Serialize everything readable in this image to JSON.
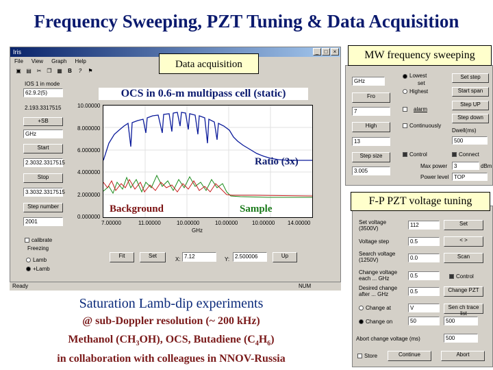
{
  "title": "Frequency Sweeping, PZT Tuning & Data Acquisition",
  "main_window": {
    "title": "Iris",
    "menu": [
      "File",
      "View",
      "Graph",
      "Help"
    ],
    "toolbar_icons": [
      "save-icon",
      "print-icon",
      "cut-icon",
      "copy-icon",
      "paste-icon",
      "bold-icon",
      "italic-icon",
      "help-icon"
    ],
    "left_panel": {
      "mode_label": "IOS 1 in mode",
      "mode_value": "62.9.2(5)",
      "freq_readout": "2.193.3317515",
      "sb_button": "+SB",
      "unit": "GHz",
      "start_button": "Start",
      "start_value": "2.3032.3317515",
      "stop_button": "Stop",
      "stop_value": "3.3032.3317515",
      "step_button": "Step number",
      "step_value": "2001",
      "calibrate": "calibrate",
      "freezing": "Freezing",
      "opt1": "Lamb",
      "opt2": "+Lamb"
    },
    "plot": {
      "yticks": [
        "10.00000",
        "8.000000",
        "6.000000",
        "4.000000",
        "2.000000",
        "0.000000"
      ],
      "xticks": [
        "7.00000",
        "11.00000",
        "10.00000",
        "10.00000",
        "10.00000",
        "14.00000"
      ],
      "xunit": "GHz"
    },
    "bottom_bar": {
      "btn1": "Fit",
      "btn2": "Set",
      "x_label": "X:",
      "x_value": "7.12",
      "y_label": "Y:",
      "y_value": "2.500006",
      "btn3": "Up"
    },
    "status": "Ready",
    "status_right": "NUM"
  },
  "callouts": {
    "data_acquisition": "Data acquisition",
    "ocs_cell": "OCS in 0.6-m multipass cell (static)",
    "ratio": "Ratio (3x)",
    "background": "Background",
    "sample": "Sample",
    "mw_sweep": "MW frequency sweeping",
    "fp_pzt": "F-P PZT voltage tuning"
  },
  "mw_panel": {
    "unit": "GHz",
    "from_button": "Fro",
    "from_value": "7",
    "high_button": "High",
    "high_value": "13",
    "step_button": "Step size",
    "step_value": "3.005",
    "lowest": "Lowest",
    "highest": "Highest",
    "opt_set": "set",
    "continuously": "Continuously",
    "alarm": "alarm",
    "control": "Control",
    "connect": "Connect",
    "max_power": "Max power",
    "power_level": "Power level",
    "p_value": "3",
    "p_unit": "dBm",
    "level_value": "TOP",
    "set_btn": "Set step",
    "start_btn": "Start span",
    "stepup_btn": "Step UP",
    "stepdn_btn": "Step down",
    "dwell_label": "Dwell(ms)",
    "dwell_value": "500"
  },
  "fp_panel": {
    "rows": [
      {
        "label": "Set voltage (3500V)",
        "value": "112",
        "button": "Set"
      },
      {
        "label": "Voltage step",
        "value": "0.5",
        "button": "<  >"
      },
      {
        "label": "Search voltage (1250V)",
        "value": "0.0",
        "button": "Scan"
      },
      {
        "label": "Change voltage each ... GHz",
        "value": "0.5",
        "button": "Control"
      },
      {
        "label": "Desired change after ... GHz",
        "value": "0.5",
        "button": "Change PZT"
      }
    ],
    "change_opt1": "Change at",
    "change_opt1_value": "V",
    "change_opt2": "Change on",
    "change_opt2_value": "50",
    "change_btn": "Sen ch trace list",
    "reset_value": "500",
    "rule_label": "Abort change voltage (ms)",
    "rule_value": "500",
    "store": "Store",
    "btn_left": "Continue",
    "btn_right": "Abort"
  },
  "bottom_text": {
    "line1": "Saturation Lamb-dip experiments",
    "line2": "@ sub-Doppler resolution (~ 200 kHz)",
    "line3_a": "Methanol (CH",
    "line3_sub1": "3",
    "line3_b": "OH),  OCS,  Butadiene (C",
    "line3_sub2": "4",
    "line3_c": "H",
    "line3_sub3": "6",
    "line3_d": ")",
    "line4": "in collaboration with colleagues in NNOV-Russia"
  }
}
